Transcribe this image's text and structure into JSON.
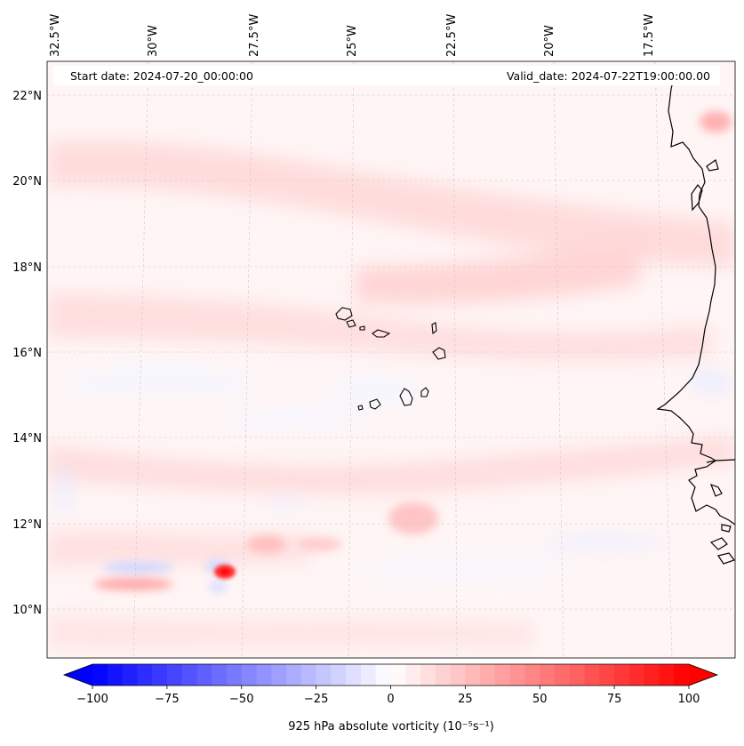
{
  "map": {
    "start_label": "Start date: 2024-07-20_00:00:00",
    "valid_label": "Valid_date: 2024-07-22T19:00:00.00",
    "lon_labels": [
      "32.5°W",
      "30°W",
      "27.5°W",
      "25°W",
      "22.5°W",
      "20°W",
      "17.5°W"
    ],
    "lat_labels": [
      "22°N",
      "20°N",
      "18°N",
      "16°N",
      "14°N",
      "12°N",
      "10°N"
    ],
    "variable": "925 hPa absolute vorticity",
    "colors": {
      "positive": "#ff0000",
      "negative": "#0000ff",
      "coast": "#000000"
    }
  },
  "colorbar": {
    "label": "925 hPa absolute vorticity (10⁻⁵s⁻¹)",
    "ticks": [
      "−100",
      "−75",
      "−50",
      "−25",
      "0",
      "25",
      "50",
      "75",
      "100"
    ],
    "range": [
      -100,
      100
    ],
    "step": 5
  }
}
